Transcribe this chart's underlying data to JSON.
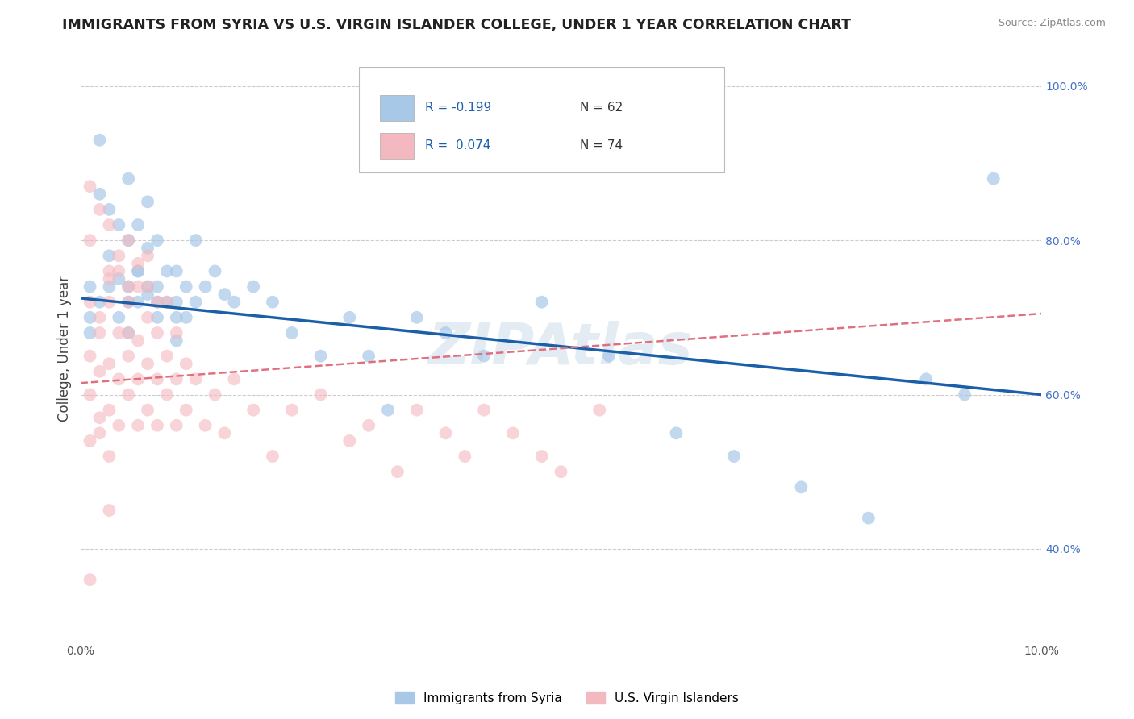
{
  "title": "IMMIGRANTS FROM SYRIA VS U.S. VIRGIN ISLANDER COLLEGE, UNDER 1 YEAR CORRELATION CHART",
  "source": "Source: ZipAtlas.com",
  "ylabel": "College, Under 1 year",
  "xlim": [
    0.0,
    0.1
  ],
  "ylim": [
    0.28,
    1.04
  ],
  "xticks": [
    0.0,
    0.02,
    0.04,
    0.06,
    0.08,
    0.1
  ],
  "xticklabels": [
    "0.0%",
    "",
    "",
    "",
    "",
    "10.0%"
  ],
  "yticks": [
    0.4,
    0.6,
    0.8,
    1.0
  ],
  "yticklabels_right": [
    "40.0%",
    "60.0%",
    "80.0%",
    "100.0%"
  ],
  "legend_labels": [
    "Immigrants from Syria",
    "U.S. Virgin Islanders"
  ],
  "blue_color": "#a8c8e8",
  "pink_color": "#f4b8c0",
  "blue_line_color": "#1a5fa8",
  "pink_line_color": "#e07080",
  "background_color": "#ffffff",
  "grid_color": "#cccccc",
  "watermark": "ZIPAtlas",
  "blue_scatter_x": [
    0.001,
    0.002,
    0.002,
    0.003,
    0.003,
    0.004,
    0.004,
    0.005,
    0.005,
    0.005,
    0.005,
    0.006,
    0.006,
    0.006,
    0.007,
    0.007,
    0.007,
    0.008,
    0.008,
    0.008,
    0.009,
    0.009,
    0.01,
    0.01,
    0.01,
    0.011,
    0.011,
    0.012,
    0.012,
    0.013,
    0.014,
    0.015,
    0.016,
    0.018,
    0.02,
    0.022,
    0.025,
    0.028,
    0.03,
    0.032,
    0.035,
    0.038,
    0.042,
    0.048,
    0.055,
    0.062,
    0.068,
    0.075,
    0.082,
    0.088,
    0.092,
    0.095,
    0.003,
    0.005,
    0.006,
    0.007,
    0.008,
    0.01,
    0.001,
    0.001,
    0.002,
    0.004
  ],
  "blue_scatter_y": [
    0.7,
    0.93,
    0.86,
    0.84,
    0.78,
    0.82,
    0.75,
    0.88,
    0.8,
    0.74,
    0.68,
    0.82,
    0.76,
    0.72,
    0.85,
    0.79,
    0.73,
    0.8,
    0.74,
    0.7,
    0.76,
    0.72,
    0.76,
    0.72,
    0.67,
    0.74,
    0.7,
    0.72,
    0.8,
    0.74,
    0.76,
    0.73,
    0.72,
    0.74,
    0.72,
    0.68,
    0.65,
    0.7,
    0.65,
    0.58,
    0.7,
    0.68,
    0.65,
    0.72,
    0.65,
    0.55,
    0.52,
    0.48,
    0.44,
    0.62,
    0.6,
    0.88,
    0.74,
    0.72,
    0.76,
    0.74,
    0.72,
    0.7,
    0.68,
    0.74,
    0.72,
    0.7
  ],
  "pink_scatter_x": [
    0.001,
    0.001,
    0.001,
    0.001,
    0.002,
    0.002,
    0.002,
    0.002,
    0.003,
    0.003,
    0.003,
    0.003,
    0.003,
    0.004,
    0.004,
    0.004,
    0.004,
    0.005,
    0.005,
    0.005,
    0.005,
    0.006,
    0.006,
    0.006,
    0.006,
    0.007,
    0.007,
    0.007,
    0.007,
    0.008,
    0.008,
    0.008,
    0.009,
    0.009,
    0.009,
    0.01,
    0.01,
    0.01,
    0.011,
    0.011,
    0.012,
    0.013,
    0.014,
    0.015,
    0.016,
    0.018,
    0.02,
    0.022,
    0.025,
    0.028,
    0.03,
    0.033,
    0.035,
    0.038,
    0.04,
    0.042,
    0.045,
    0.048,
    0.05,
    0.054,
    0.001,
    0.002,
    0.003,
    0.003,
    0.004,
    0.005,
    0.005,
    0.006,
    0.007,
    0.008,
    0.002,
    0.003,
    0.001,
    0.001
  ],
  "pink_scatter_y": [
    0.72,
    0.65,
    0.6,
    0.54,
    0.7,
    0.63,
    0.57,
    0.68,
    0.72,
    0.64,
    0.58,
    0.52,
    0.75,
    0.68,
    0.62,
    0.56,
    0.76,
    0.72,
    0.65,
    0.6,
    0.68,
    0.74,
    0.67,
    0.62,
    0.56,
    0.7,
    0.64,
    0.58,
    0.74,
    0.68,
    0.62,
    0.56,
    0.72,
    0.65,
    0.6,
    0.68,
    0.62,
    0.56,
    0.64,
    0.58,
    0.62,
    0.56,
    0.6,
    0.55,
    0.62,
    0.58,
    0.52,
    0.58,
    0.6,
    0.54,
    0.56,
    0.5,
    0.58,
    0.55,
    0.52,
    0.58,
    0.55,
    0.52,
    0.5,
    0.58,
    0.8,
    0.84,
    0.82,
    0.76,
    0.78,
    0.8,
    0.74,
    0.77,
    0.78,
    0.72,
    0.55,
    0.45,
    0.36,
    0.87
  ],
  "blue_trendline_x": [
    0.0,
    0.1
  ],
  "blue_trendline_y": [
    0.725,
    0.6
  ],
  "pink_trendline_x": [
    0.0,
    0.1
  ],
  "pink_trendline_y": [
    0.615,
    0.705
  ]
}
